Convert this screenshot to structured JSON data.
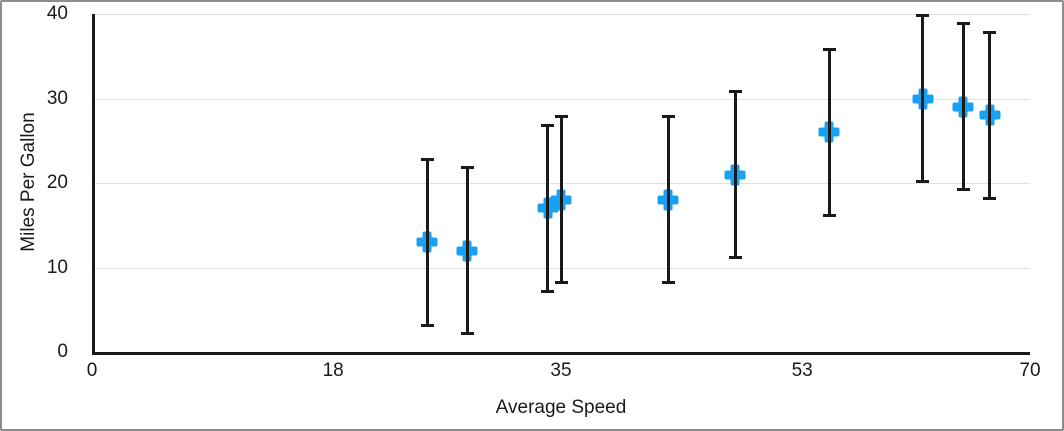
{
  "window": {
    "background_color": "#ffffff",
    "border_color": "#8d8d8d"
  },
  "chart_data": {
    "type": "scatter",
    "title": "",
    "xlabel": "Average Speed",
    "ylabel": "Miles Per Gallon",
    "xlim": [
      0,
      70
    ],
    "ylim": [
      0,
      40
    ],
    "x_ticks": [
      "0",
      "18",
      "35",
      "53",
      "70"
    ],
    "x_tick_values": [
      0,
      18,
      35,
      53,
      70
    ],
    "y_ticks": [
      "0",
      "10",
      "20",
      "30",
      "40"
    ],
    "y_tick_values": [
      0,
      10,
      20,
      30,
      40
    ],
    "grid": "horizontal-only",
    "legend_position": "none",
    "marker_shape": "plus",
    "marker_color": "#18a1f2",
    "error_bar_color": "#1a1a1a",
    "axis_color": "#1a1a1a",
    "gridline_color": "#e2e2e2",
    "points": [
      {
        "x": 25,
        "y": 13,
        "error_plus": 10,
        "error_minus": 10
      },
      {
        "x": 28,
        "y": 12,
        "error_plus": 10,
        "error_minus": 10
      },
      {
        "x": 34,
        "y": 17,
        "error_plus": 10,
        "error_minus": 10
      },
      {
        "x": 35,
        "y": 18,
        "error_plus": 10,
        "error_minus": 10
      },
      {
        "x": 43,
        "y": 18,
        "error_plus": 10,
        "error_minus": 10
      },
      {
        "x": 48,
        "y": 21,
        "error_plus": 10,
        "error_minus": 10
      },
      {
        "x": 55,
        "y": 26,
        "error_plus": 10,
        "error_minus": 10
      },
      {
        "x": 62,
        "y": 30,
        "error_plus": 10,
        "error_minus": 10
      },
      {
        "x": 65,
        "y": 29,
        "error_plus": 10,
        "error_minus": 10
      },
      {
        "x": 67,
        "y": 28,
        "error_plus": 10,
        "error_minus": 10
      }
    ]
  }
}
